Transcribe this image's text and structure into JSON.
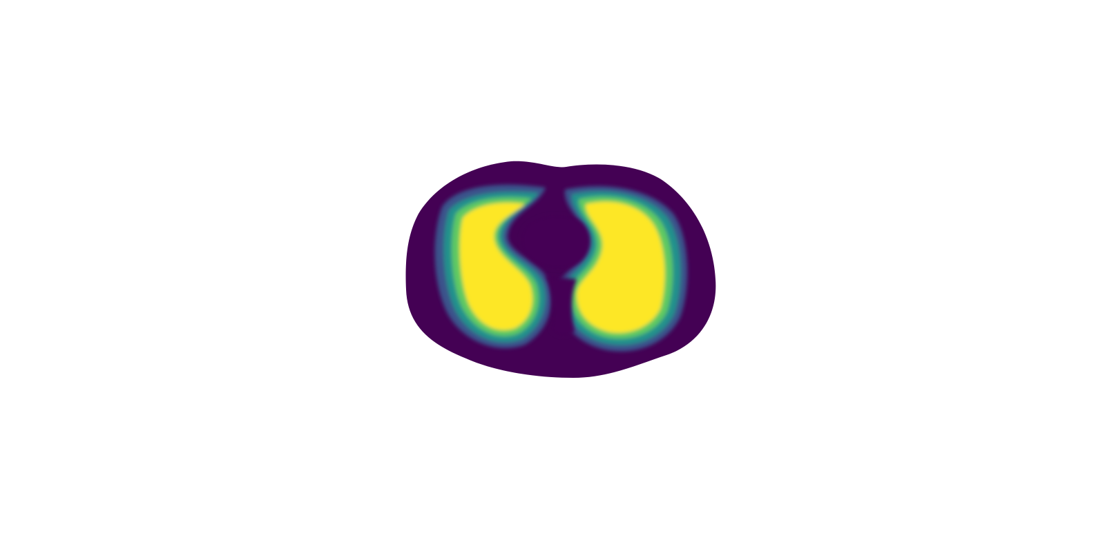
{
  "figure": {
    "kind": "thorax-cross-section-conductivity-map",
    "colormap": "viridis",
    "background_color": "#ffffff",
    "colors": {
      "low": "#440154",
      "low_mid": "#3b528b",
      "mid": "#21918c",
      "high_mid": "#5ec962",
      "high": "#fde725"
    },
    "regions": [
      {
        "name": "body-outline",
        "level": 0.0
      },
      {
        "name": "left-lung",
        "level": 1.0
      },
      {
        "name": "right-lung",
        "level": 1.0
      },
      {
        "name": "heart-region",
        "level": 0.0
      }
    ]
  }
}
